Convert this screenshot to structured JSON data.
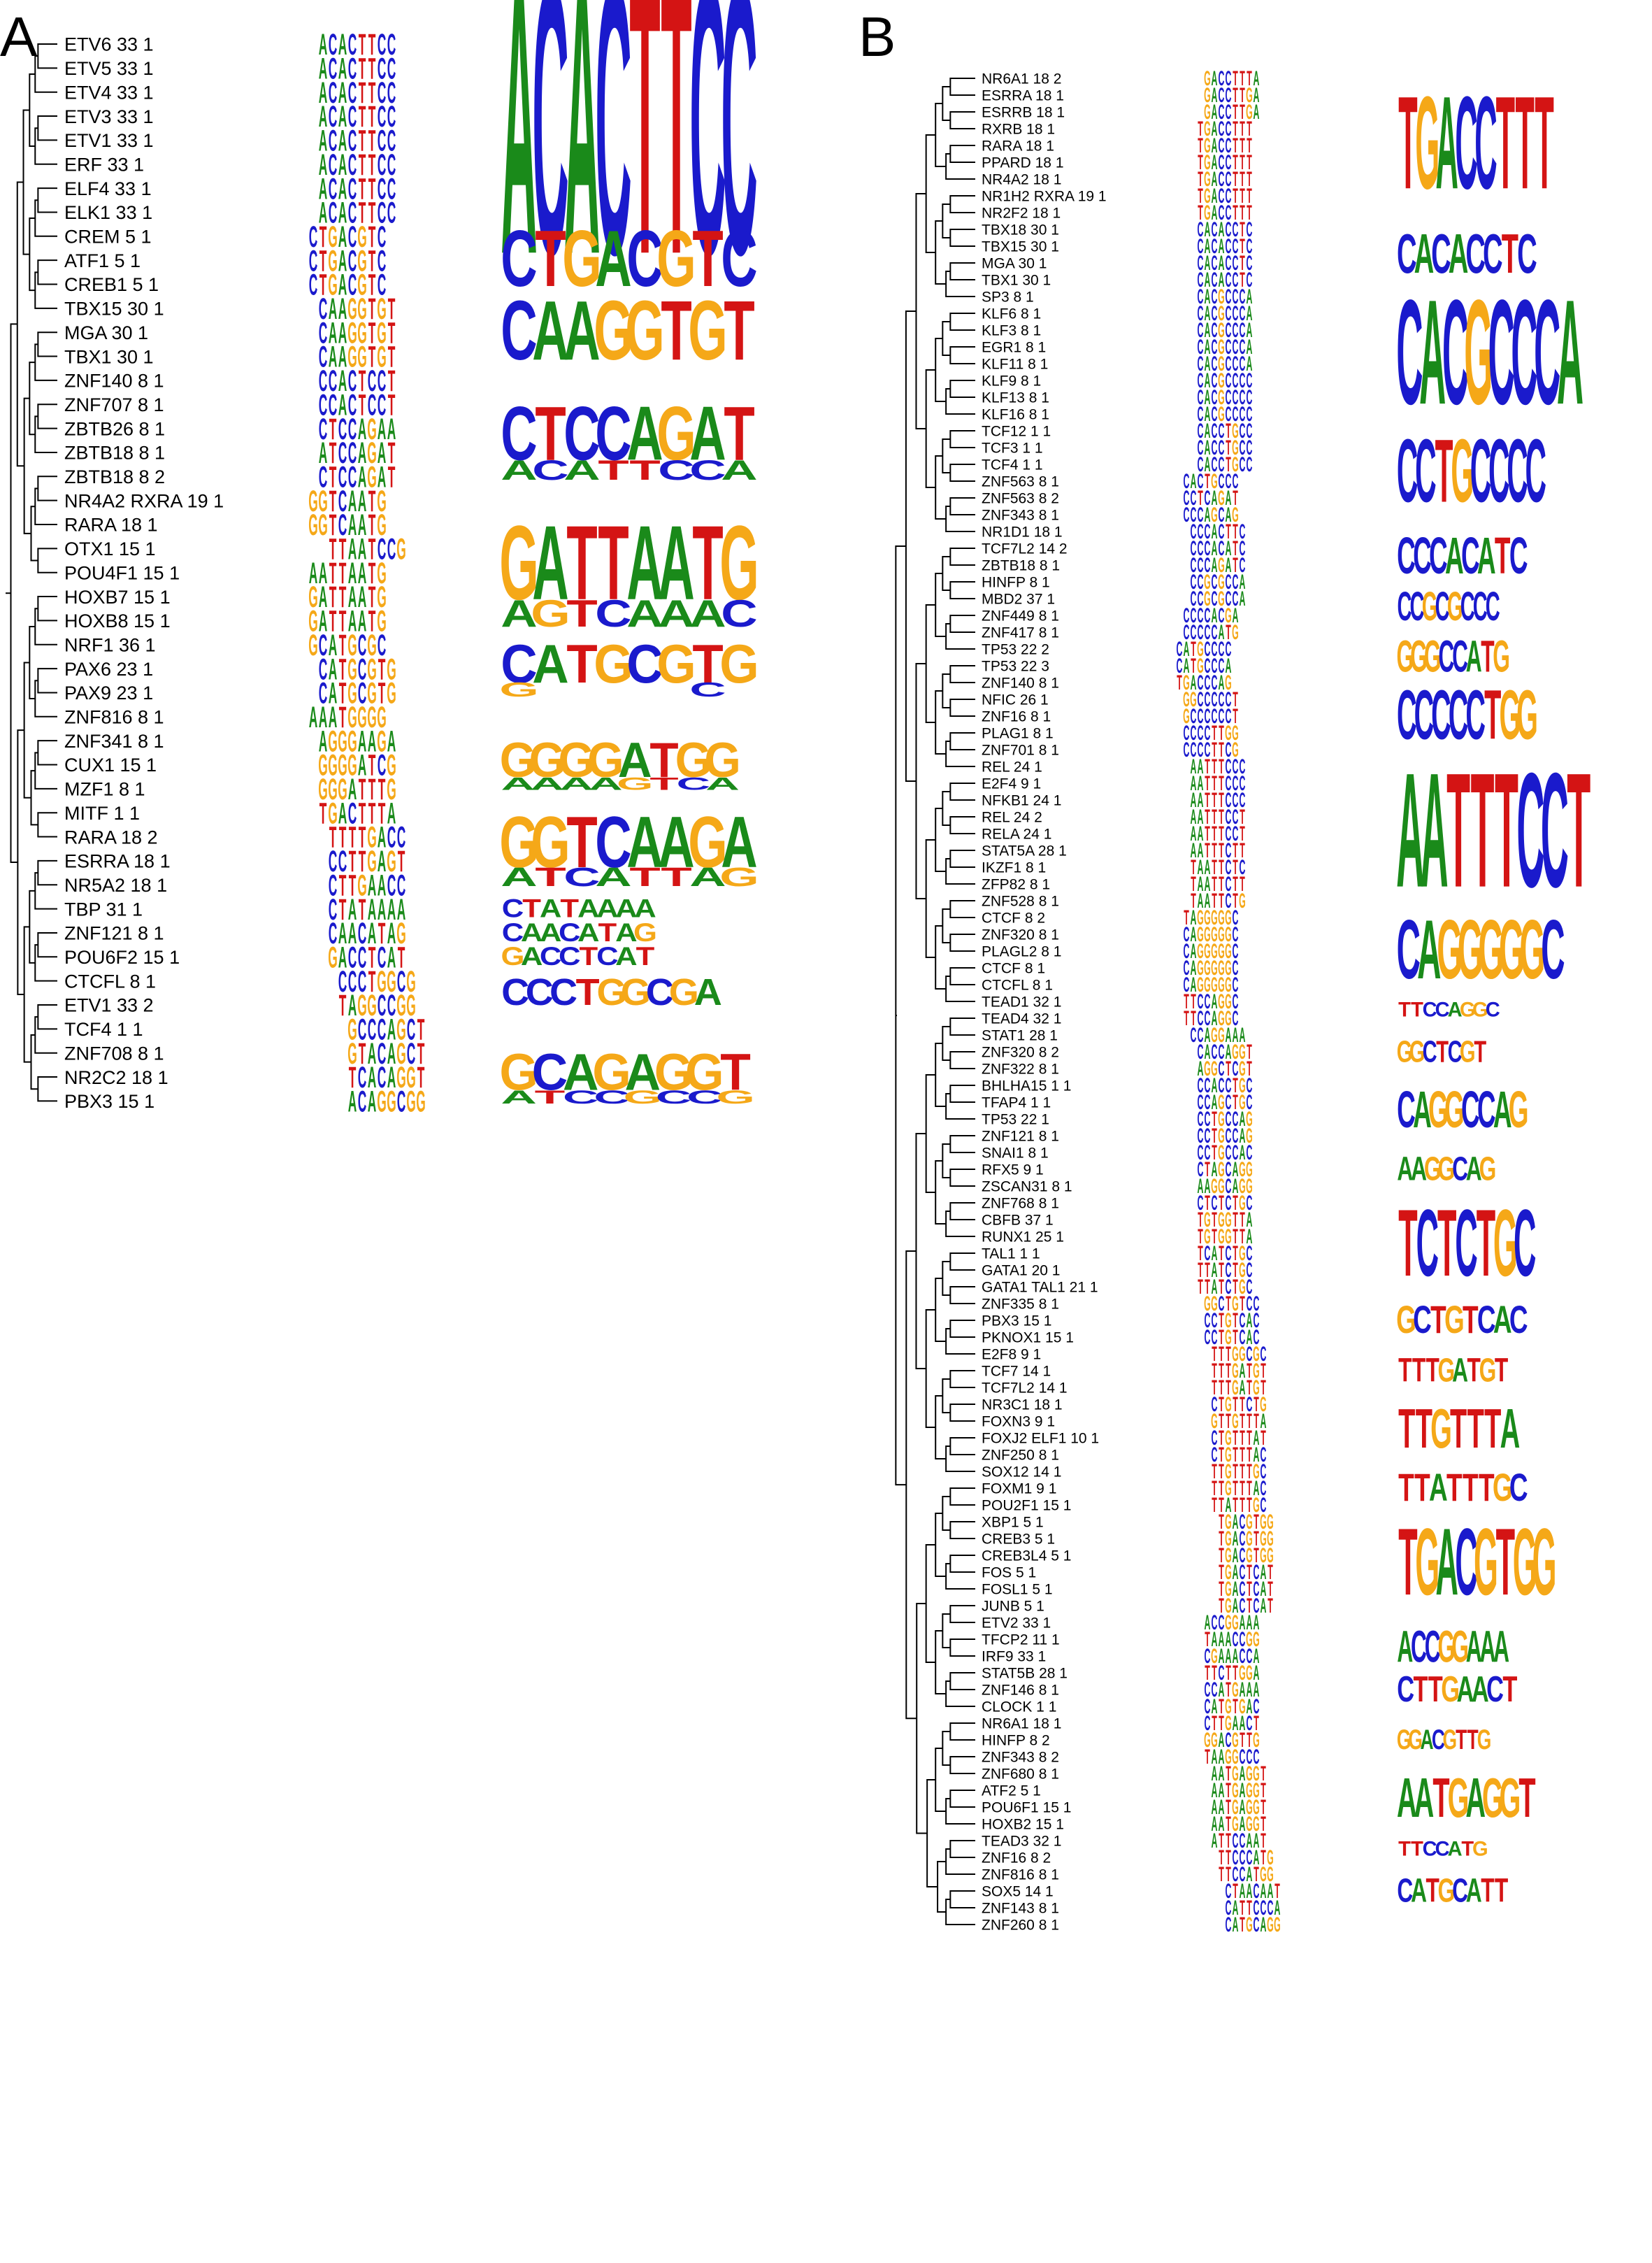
{
  "colors": {
    "A": "#1a8a1a",
    "C": "#1a1acc",
    "G": "#f5a818",
    "T": "#d41414"
  },
  "panels": [
    {
      "letter": "A",
      "labels": [
        "ETV6 33 1",
        "ETV5 33 1",
        "ETV4 33 1",
        "ETV3 33 1",
        "ETV1 33 1",
        "ERF 33 1",
        "ELF4 33 1",
        "ELK1 33 1",
        "CREM 5 1",
        "ATF1 5 1",
        "CREB1 5 1",
        "TBX15 30 1",
        "MGA 30 1",
        "TBX1 30 1",
        "ZNF140 8 1",
        "ZNF707 8 1",
        "ZBTB26 8 1",
        "ZBTB18 8 1",
        "ZBTB18 8 2",
        "NR4A2 RXRA 19 1",
        "RARA 18 1",
        "OTX1 15 1",
        "POU4F1 15 1",
        "HOXB7 15 1",
        "HOXB8 15 1",
        "NRF1 36 1",
        "PAX6 23 1",
        "PAX9 23 1",
        "ZNF816 8 1",
        "ZNF341 8 1",
        "CUX1 15 1",
        "MZF1 8 1",
        "MITF 1 1",
        "RARA 18 2",
        "ESRRA 18 1",
        "NR5A2 18 1",
        "TBP 31 1",
        "ZNF121 8 1",
        "POU6F2 15 1",
        "CTCFL 8 1",
        "ETV1 33 2",
        "TCF4 1 1",
        "ZNF708 8 1",
        "NR2C2 18 1",
        "PBX3 15 1"
      ],
      "motifs": [
        "ACACTTCC",
        "ACACTTCC",
        "ACACTTCC",
        "ACACTTCC",
        "ACACTTCC",
        "ACACTTCC",
        "ACACTTCC",
        "ACACTTCC",
        "CTGACGTC",
        "CTGACGTC",
        "CTGACGTC",
        "CAAGGTGT",
        "CAAGGTGT",
        "CAAGGTGT",
        "CCACTCCT",
        "CCACTCCT",
        "CTCCAGAA",
        "ATCCAGAT",
        "CTCCAGAT",
        "GGTCAATG",
        "GGTCAATG",
        "TTAATCCG",
        "AATTAATG",
        "GATTAATG",
        "GATTAATG",
        "GCATGCGC",
        "CATGCGTG",
        "CATGCGTG",
        "AAATGGGG",
        "AGGGAAGA",
        "GGGGATCG",
        "GGGATTTG",
        "TGACTTTA",
        "TTTTGACC",
        "CCTTGAGT",
        "CTTGAACC",
        "CTATAAAA",
        "CAACATAG",
        "GACCTCAT",
        "CCCTGGCG",
        "TAGGCCGG",
        "GCCCAGCT",
        "GTACAGCT",
        "TCACAGGT",
        "ACAGGCGG"
      ],
      "offsets": [
        0,
        0,
        0,
        0,
        0,
        0,
        0,
        0,
        -1,
        -1,
        -1,
        0,
        0,
        0,
        0,
        0,
        0,
        0,
        0,
        -1,
        -1,
        1,
        -1,
        -1,
        -1,
        -1,
        0,
        0,
        -1,
        0,
        0,
        0,
        0,
        1,
        1,
        1,
        1,
        1,
        1,
        2,
        2,
        3,
        3,
        3,
        3
      ],
      "consensus": [
        {
          "rows": [
            0,
            7
          ],
          "seq": "ACACTTCC",
          "scale": 1.8
        },
        {
          "rows": [
            8,
            10
          ],
          "seq": "CTGACGTC",
          "scale": 1.0
        },
        {
          "rows": [
            11,
            13
          ],
          "seq": "CAAGGTGT",
          "scale": 1.05
        },
        {
          "rows": [
            15,
            18
          ],
          "seq": "CTCCAGAT",
          "sub": "ACATTCCA",
          "scale": 1.0
        },
        {
          "rows": [
            20,
            24
          ],
          "seq": "GATTAATG",
          "sub": "AGTCAAAC",
          "scale": 1.1
        },
        {
          "rows": [
            25,
            27
          ],
          "seq": "CATGCGTG",
          "sub": "G     CX",
          "scale": 0.95
        },
        {
          "rows": [
            29,
            31
          ],
          "seq": "GGGGATGG",
          "sub": "AAAAGTCA",
          "scale": 0.85
        },
        {
          "rows": [
            32,
            35
          ],
          "seq": "GGTCAAGA",
          "sub": "ATCATTAG",
          "scale": 0.95
        },
        {
          "rows": [
            36,
            36
          ],
          "seq": "CTATAAAA",
          "scale": 0.55
        },
        {
          "rows": [
            37,
            37
          ],
          "seq": "CAACATAG",
          "scale": 0.55
        },
        {
          "rows": [
            38,
            38
          ],
          "seq": "GACCTCAT",
          "scale": 0.55
        },
        {
          "rows": [
            39,
            40
          ],
          "seq": "CCCTGGCGA",
          "scale": 0.7
        },
        {
          "rows": [
            42,
            44
          ],
          "seq": "GCAGAGGT",
          "sub": "ATCCGCCG",
          "scale": 0.9
        }
      ]
    },
    {
      "letter": "B",
      "labels": [
        "NR6A1 18 2",
        "ESRRA 18 1",
        "ESRRB 18 1",
        "RXRB 18 1",
        "RARA 18 1",
        "PPARD 18 1",
        "NR4A2 18 1",
        "NR1H2 RXRA 19 1",
        "NR2F2 18 1",
        "TBX18 30 1",
        "TBX15 30 1",
        "MGA 30 1",
        "TBX1 30 1",
        "SP3 8 1",
        "KLF6 8 1",
        "KLF3 8 1",
        "EGR1 8 1",
        "KLF11 8 1",
        "KLF9 8 1",
        "KLF13 8 1",
        "KLF16 8 1",
        "TCF12 1 1",
        "TCF3 1 1",
        "TCF4 1 1",
        "ZNF563 8 1",
        "ZNF563 8 2",
        "ZNF343 8 1",
        "NR1D1 18 1",
        "TCF7L2 14 2",
        "ZBTB18 8 1",
        "HINFP 8 1",
        "MBD2 37 1",
        "ZNF449 8 1",
        "ZNF417 8 1",
        "TP53 22 2",
        "TP53 22 3",
        "ZNF140 8 1",
        "NFIC 26 1",
        "ZNF16 8 1",
        "PLAG1 8 1",
        "ZNF701 8 1",
        "REL 24 1",
        "E2F4 9 1",
        "NFKB1 24 1",
        "REL 24 2",
        "RELA 24 1",
        "STAT5A 28 1",
        "IKZF1 8 1",
        "ZFP82 8 1",
        "ZNF528 8 1",
        "CTCF 8 2",
        "ZNF320 8 1",
        "PLAGL2 8 1",
        "CTCF 8 1",
        "CTCFL 8 1",
        "TEAD1 32 1",
        "TEAD4 32 1",
        "STAT1 28 1",
        "ZNF320 8 2",
        "ZNF322 8 1",
        "BHLHA15 1 1",
        "TFAP4 1 1",
        "TP53 22 1",
        "ZNF121 8 1",
        "SNAI1 8 1",
        "RFX5 9 1",
        "ZSCAN31 8 1",
        "ZNF768 8 1",
        "CBFB 37 1",
        "RUNX1 25 1",
        "TAL1 1 1",
        "GATA1 20 1",
        "GATA1 TAL1 21 1",
        "ZNF335 8 1",
        "PBX3 15 1",
        "PKNOX1 15 1",
        "E2F8 9 1",
        "TCF7 14 1",
        "TCF7L2 14 1",
        "NR3C1 18 1",
        "FOXN3 9 1",
        "FOXJ2 ELF1 10 1",
        "ZNF250 8 1",
        "SOX12 14 1",
        "FOXM1 9 1",
        "POU2F1 15 1",
        "XBP1 5 1",
        "CREB3 5 1",
        "CREB3L4 5 1",
        "FOS 5 1",
        "FOSL1 5 1",
        "JUNB 5 1",
        "ETV2 33 1",
        "TFCP2 11 1",
        "IRF9 33 1",
        "STAT5B 28 1",
        "ZNF146 8 1",
        "CLOCK 1 1",
        "NR6A1 18 1",
        "HINFP 8 2",
        "ZNF343 8 2",
        "ZNF680 8 1",
        "ATF2 5 1",
        "POU6F1 15 1",
        "HOXB2 15 1",
        "TEAD3 32 1",
        "ZNF16 8 2",
        "ZNF816 8 1",
        "SOX5 14 1",
        "ZNF143 8 1",
        "ZNF260 8 1"
      ],
      "motifs": [
        "GACCTTTA",
        "GACCTTGA",
        "GACCTTGA",
        "TGACCTTT",
        "TGACCTTT",
        "TGACCTTT",
        "TGACCTTT",
        "TGACCTTT",
        "TGACCTTT",
        "CACACCTC",
        "CACACCTC",
        "CACACCTC",
        "CACACCTC",
        "CACGCCCA",
        "CACGCCCA",
        "CACGCCCA",
        "CACGCCCA",
        "CACGCCCA",
        "CACGCCCC",
        "CACGCCCC",
        "CACGCCCC",
        "CACCTGCC",
        "CACCTGCC",
        "CACCTGCC",
        "CACTGCCC",
        "CCTCAGAT",
        "CCCAGCAG",
        "CCCACTTC",
        "CCCACATC",
        "CCCAGATC",
        "CCGCGCCA",
        "CCGCGCCA",
        "CCCCACGA",
        "CCCCCATG",
        "CATGCCCC",
        "CATGCCCA",
        "TGACCCAG",
        "GGCCCCCT",
        "GCCCCCCT",
        "CCCCTTGG",
        "CCCCTTCG",
        "AATTTCCC",
        "AATTTCCC",
        "AATTTCCC",
        "AATTTCCT",
        "AATTTCCT",
        "AATTTCTT",
        "TAATTCTC",
        "TAATTCTT",
        "TAATTCTG",
        "TAGGGGGC",
        "CAGGGGGC",
        "CAGGGGGC",
        "CAGGGGGC",
        "CAGGGGGC",
        "TTCCAGGC",
        "TTCCAGGC",
        "CCAGGAAA",
        "CACCAGGT",
        "AGGCTCGT",
        "CCACCTGC",
        "CCAGCTGC",
        "CCTGCCAG",
        "CCTGCCAG",
        "CCTGCCAC",
        "CTAGCAGG",
        "AAGGCAGG",
        "CTCTCTGC",
        "TGTGGTTA",
        "TGTGGTTA",
        "TCATCTGC",
        "TTATCTGC",
        "TTATCTGC",
        "GGCTGTCC",
        "CCTGTCAC",
        "CCTGTCAC",
        "TTTGGCGC",
        "TTTGATGT",
        "TTTGATGT",
        "CTGTTCTG",
        "GTTGTTTA",
        "CTGTTTAT",
        "CTGTTTAC",
        "TTGTTTGC",
        "TTGTTTAC",
        "TTATTTGC",
        "TGACGTGG",
        "TGACGTGG",
        "TGACGTGG",
        "TGACTCAT",
        "TGACTCAT",
        "TGACTCAT",
        "ACCGGAAA",
        "TAAACCGG",
        "CGAAACCA",
        "TTCTTGGA",
        "CCATGAAA",
        "CATGTGAC",
        "CTTGAACT",
        "GGACGTTG",
        "TAAGGCCC",
        "AATGAGGT",
        "AATGAGGT",
        "AATGAGGT",
        "AATGAGGT",
        "ATTCCAAT",
        "TTCCCATG",
        "TTCCATGG",
        "CTAACAAT",
        "CATTCCCA",
        "CATGCAGG"
      ],
      "offsets": [
        2,
        2,
        2,
        1,
        1,
        1,
        1,
        1,
        1,
        1,
        1,
        1,
        1,
        1,
        1,
        1,
        1,
        1,
        1,
        1,
        1,
        1,
        1,
        1,
        -1,
        -1,
        -1,
        0,
        0,
        0,
        0,
        0,
        -1,
        -1,
        -2,
        -2,
        -2,
        -1,
        -1,
        -1,
        -1,
        0,
        0,
        0,
        0,
        0,
        0,
        0,
        0,
        0,
        -1,
        -1,
        -1,
        -1,
        -1,
        -1,
        -1,
        0,
        1,
        1,
        1,
        1,
        1,
        1,
        1,
        1,
        1,
        1,
        1,
        1,
        1,
        1,
        1,
        2,
        2,
        2,
        3,
        3,
        3,
        3,
        3,
        3,
        3,
        3,
        3,
        3,
        4,
        4,
        4,
        4,
        4,
        4,
        2,
        2,
        2,
        2,
        2,
        2,
        2,
        2,
        2,
        3,
        3,
        3,
        3,
        3,
        4,
        4,
        5,
        5,
        5
      ],
      "consensus": [
        {
          "rows": [
            0,
            8
          ],
          "seq": "TGACCTTT",
          "scale": 0.85
        },
        {
          "rows": [
            9,
            12
          ],
          "seq": "CACACCTC",
          "scale": 0.75
        },
        {
          "rows": [
            13,
            20
          ],
          "seq": "CACGCCCA",
          "scale": 1.0
        },
        {
          "rows": [
            21,
            26
          ],
          "seq": "CCTGCCCC",
          "scale": 0.8
        },
        {
          "rows": [
            27,
            30
          ],
          "seq": "CCCACATC",
          "scale": 0.7
        },
        {
          "rows": [
            30,
            33
          ],
          "seq": "CCGCGCCC",
          "scale": 0.55
        },
        {
          "rows": [
            33,
            36
          ],
          "seq": "GGGCCATG",
          "scale": 0.6
        },
        {
          "rows": [
            36,
            40
          ],
          "seq": "CCCCCTGG",
          "scale": 0.75
        },
        {
          "rows": [
            41,
            49
          ],
          "seq": "AATTTCCT",
          "scale": 1.05
        },
        {
          "rows": [
            50,
            54
          ],
          "seq": "CAGGGGGC",
          "scale": 0.9
        },
        {
          "rows": [
            55,
            56
          ],
          "seq": "TTCCAGGC",
          "scale": 0.55
        },
        {
          "rows": [
            57,
            59
          ],
          "seq": "GGCTCGT",
          "scale": 0.55
        },
        {
          "rows": [
            60,
            63
          ],
          "seq": "CAGGCCAG",
          "scale": 0.7
        },
        {
          "rows": [
            64,
            66
          ],
          "seq": "AAGGCAG",
          "scale": 0.6
        },
        {
          "rows": [
            67,
            72
          ],
          "seq": "TCTCTGC",
          "scale": 0.85
        },
        {
          "rows": [
            73,
            75
          ],
          "seq": "GCTGTCAC",
          "scale": 0.7
        },
        {
          "rows": [
            76,
            78
          ],
          "seq": "TTTGATGT",
          "scale": 0.6
        },
        {
          "rows": [
            79,
            82
          ],
          "seq": "TTGTTTA",
          "scale": 0.75
        },
        {
          "rows": [
            83,
            85
          ],
          "seq": "TTATTTGC",
          "scale": 0.7
        },
        {
          "rows": [
            86,
            91
          ],
          "seq": "TGACGTGG",
          "scale": 0.85
        },
        {
          "rows": [
            92,
            95
          ],
          "seq": "ACCGGAAA",
          "scale": 0.6
        },
        {
          "rows": [
            95,
            97
          ],
          "seq": "CTTGAACT",
          "scale": 0.65
        },
        {
          "rows": [
            98,
            100
          ],
          "seq": "GGACGTTG",
          "scale": 0.5
        },
        {
          "rows": [
            101,
            104
          ],
          "seq": "AATGAGGT",
          "scale": 0.75
        },
        {
          "rows": [
            105,
            106
          ],
          "seq": "TTCCATG",
          "scale": 0.55
        },
        {
          "rows": [
            107,
            109
          ],
          "seq": "CATGCATT",
          "scale": 0.6
        }
      ]
    }
  ]
}
